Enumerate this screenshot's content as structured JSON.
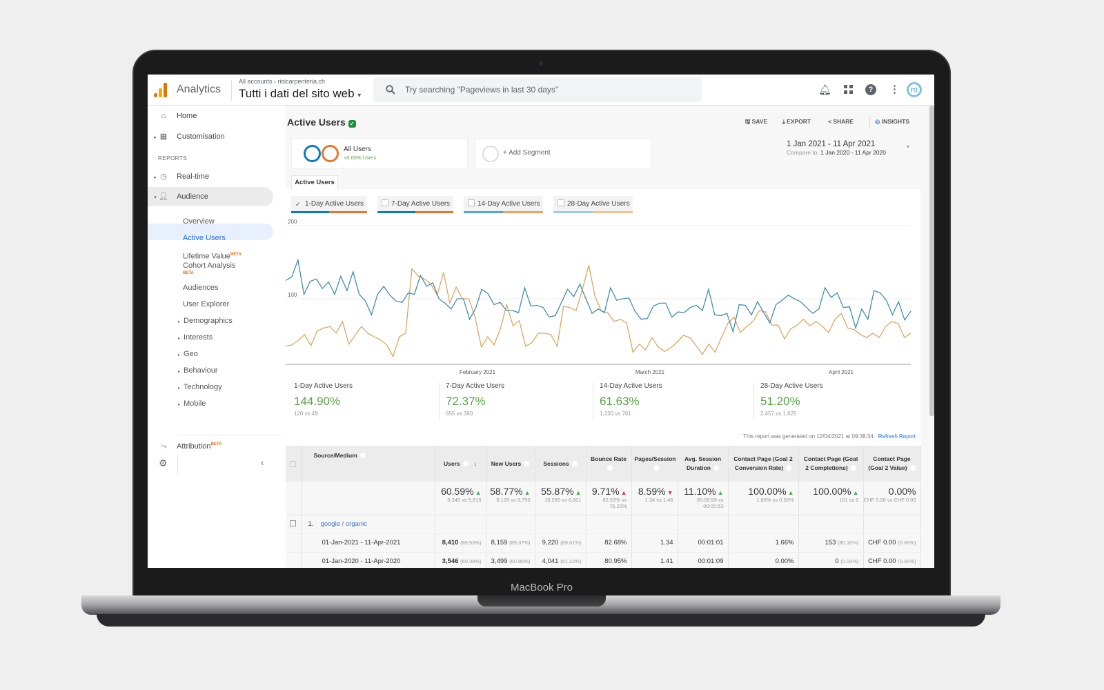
{
  "device": {
    "label": "MacBook Pro"
  },
  "header": {
    "app_name": "Analytics",
    "breadcrumb": "All accounts › risicarpenteria.ch",
    "property": "Tutti i dati del sito web",
    "search_placeholder": "Try searching \"Pageviews in last 30 days\"",
    "avatar_initial": "m"
  },
  "sidebar": {
    "home": "Home",
    "customisation": "Customisation",
    "reports_heading": "REPORTS",
    "realtime": "Real-time",
    "audience": "Audience",
    "sub_items": [
      "Overview",
      "Active Users",
      "Lifetime Value",
      "Cohort Analysis",
      "Audiences",
      "User Explorer",
      "Demographics",
      "Interests",
      "Geo",
      "Behaviour",
      "Technology",
      "Mobile"
    ],
    "beta": "BETA",
    "attribution": "Attribution"
  },
  "report": {
    "title": "Active Users",
    "actions": {
      "save": "SAVE",
      "export": "EXPORT",
      "share": "SHARE",
      "insights": "INSIGHTS"
    },
    "segment": {
      "name": "All Users",
      "detail": "+0.00% Users",
      "add": "+ Add Segment"
    },
    "date_range": "1 Jan 2021 - 11 Apr 2021",
    "compare_label": "Compare to:",
    "compare_range": "1 Jan 2020 - 11 Apr 2020",
    "tab": "Active Users",
    "metric_chips": [
      {
        "label": "1-Day Active Users",
        "checked": true
      },
      {
        "label": "7-Day Active Users",
        "checked": false
      },
      {
        "label": "14-Day Active Users",
        "checked": false
      },
      {
        "label": "28-Day Active Users",
        "checked": false
      }
    ],
    "scorecards": [
      {
        "label": "1-Day Active Users",
        "value": "144.90%",
        "sub": "120 vs 49"
      },
      {
        "label": "7-Day Active Users",
        "value": "72.37%",
        "sub": "655 vs 380"
      },
      {
        "label": "14-Day Active Users",
        "value": "61.63%",
        "sub": "1,230 vs 761"
      },
      {
        "label": "28-Day Active Users",
        "value": "51.20%",
        "sub": "2,457 vs 1,625"
      }
    ],
    "generated_note": "This report was generated on 12/04/2021 at 09:38:34 · ",
    "refresh": "Refresh Report"
  },
  "chart_data": {
    "type": "line",
    "ylim": [
      0,
      200
    ],
    "yticks": [
      "200",
      "100"
    ],
    "xticks": [
      "February 2021",
      "March 2021",
      "April 2021"
    ],
    "grid": true,
    "colors": [
      "#3d8db3",
      "#e2a35f"
    ],
    "series": [
      {
        "values": [
          125,
          130,
          153,
          106,
          124,
          127,
          114,
          123,
          106,
          131,
          111,
          137,
          106,
          97,
          78,
          106,
          117,
          105,
          97,
          95,
          108,
          106,
          132,
          117,
          122,
          100,
          94,
          86,
          100,
          100,
          72,
          87,
          113,
          107,
          92,
          95,
          84,
          84,
          81,
          115,
          90,
          91,
          88,
          75,
          77,
          95,
          113,
          103,
          120,
          100,
          80,
          86,
          81,
          115,
          98,
          100,
          101,
          83,
          72,
          73,
          90,
          94,
          94,
          75,
          82,
          81,
          88,
          91,
          84,
          113,
          78,
          77,
          80,
          55,
          92,
          91,
          78,
          96,
          81,
          67,
          92,
          98,
          105,
          100,
          96,
          88,
          80,
          86,
          115,
          102,
          108,
          88,
          89,
          60,
          86,
          72,
          111,
          108,
          98,
          78,
          96,
          71,
          83
        ]
      },
      {
        "values": [
          35,
          37,
          43,
          51,
          36,
          56,
          60,
          62,
          53,
          69,
          38,
          50,
          62,
          53,
          48,
          44,
          37,
          21,
          48,
          53,
          141,
          131,
          127,
          120,
          105,
          136,
          94,
          116,
          100,
          100,
          75,
          34,
          48,
          37,
          59,
          92,
          63,
          70,
          35,
          40,
          53,
          53,
          51,
          35,
          90,
          88,
          84,
          113,
          146,
          103,
          83,
          81,
          69,
          72,
          67,
          27,
          38,
          30,
          47,
          34,
          28,
          33,
          41,
          50,
          47,
          36,
          24,
          38,
          27,
          47,
          66,
          75,
          54,
          62,
          69,
          84,
          82,
          64,
          64,
          45,
          59,
          64,
          72,
          63,
          69,
          62,
          54,
          72,
          80,
          60,
          58,
          51,
          47,
          53,
          47,
          62,
          69,
          66,
          47,
          53
        ]
      }
    ]
  },
  "table": {
    "columns": [
      "Source/Medium",
      "Users",
      "New Users",
      "Sessions",
      "Bounce Rate",
      "Pages/Session",
      "Avg. Session Duration",
      "Contact Page (Goal 2 Conversion Rate)",
      "Contact Page (Goal 2 Completions)",
      "Contact Page (Goal 2 Value)"
    ],
    "totals": [
      {
        "value": "60.59%",
        "dir": "up",
        "good": true,
        "sub": "9,345 vs 5,819"
      },
      {
        "value": "58.77%",
        "dir": "up",
        "good": true,
        "sub": "9,129 vs 5,750"
      },
      {
        "value": "55.87%",
        "dir": "up",
        "good": true,
        "sub": "10,289 vs 6,601"
      },
      {
        "value": "9.71%",
        "dir": "up",
        "good": false,
        "sub": "82.53% vs 75.23%"
      },
      {
        "value": "8.59%",
        "dir": "down",
        "good": false,
        "sub": "1.34 vs 1.46"
      },
      {
        "value": "11.10%",
        "dir": "up",
        "good": true,
        "sub": "00:00:59 vs 00:00:53"
      },
      {
        "value": "100.00%",
        "dir": "up",
        "good": true,
        "sub": "1.86% vs 0.00%"
      },
      {
        "value": "100.00%",
        "dir": "up",
        "good": true,
        "sub": "191 vs 0"
      },
      {
        "value": "0.00%",
        "dir": "",
        "good": true,
        "sub": "CHF 0.00 vs CHF 0.00"
      }
    ],
    "groups": [
      {
        "index": "1.",
        "name": "google / organic",
        "rows": [
          {
            "label": "01-Jan-2021 - 11-Apr-2021",
            "cells": [
              {
                "v": "8,410",
                "p": "(89.53%)"
              },
              {
                "v": "8,159",
                "p": "(89.37%)"
              },
              {
                "v": "9,220",
                "p": "(89.61%)"
              },
              {
                "v": "82.68%"
              },
              {
                "v": "1.34"
              },
              {
                "v": "00:01:01"
              },
              {
                "v": "1.66%"
              },
              {
                "v": "153",
                "p": "(80.10%)"
              },
              {
                "v": "CHF 0.00",
                "p": "(0.00%)"
              }
            ]
          },
          {
            "label": "01-Jan-2020 - 11-Apr-2020",
            "cells": [
              {
                "v": "3,546",
                "p": "(60.39%)"
              },
              {
                "v": "3,499",
                "p": "(60.85%)"
              },
              {
                "v": "4,041",
                "p": "(61.22%)"
              },
              {
                "v": "80.95%"
              },
              {
                "v": "1.41"
              },
              {
                "v": "00:01:09"
              },
              {
                "v": "0.00%"
              },
              {
                "v": "0",
                "p": "(0.00%)"
              },
              {
                "v": "CHF 0.00",
                "p": "(0.00%)"
              }
            ]
          }
        ]
      }
    ]
  }
}
